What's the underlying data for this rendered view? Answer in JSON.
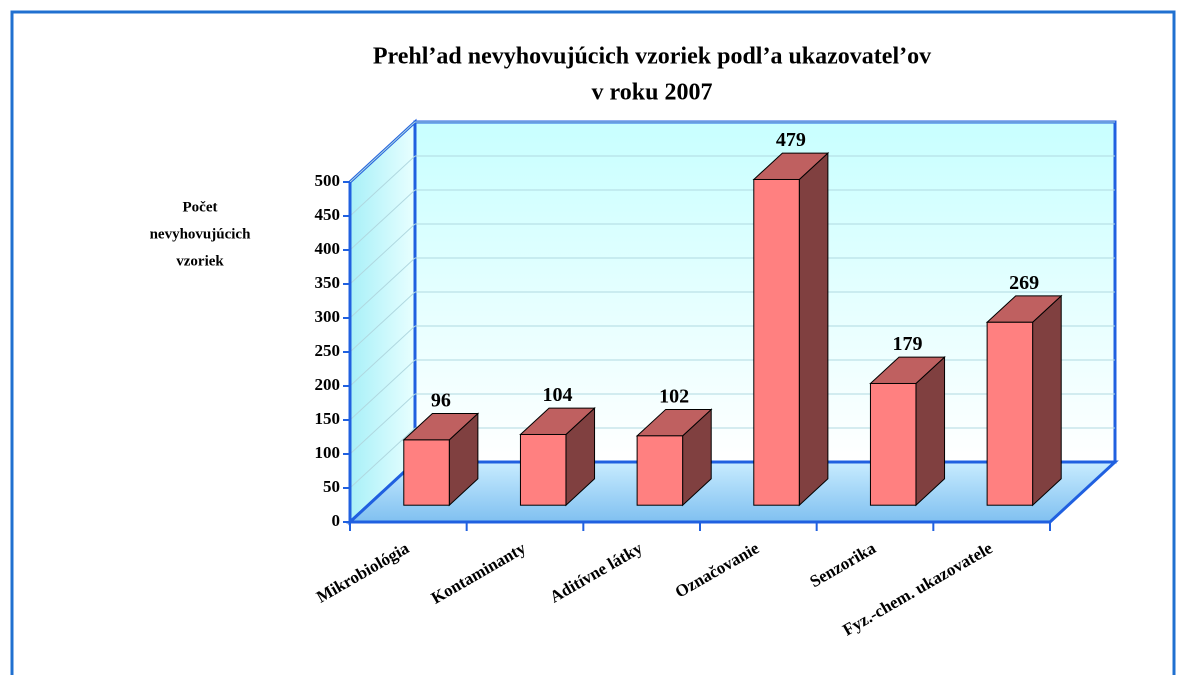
{
  "chart_data": {
    "type": "bar3d",
    "title": [
      "Prehl’ad nevyhovujúcich vzoriek podl’a ukazovatel’ov",
      "v roku 2007"
    ],
    "y_label": [
      "Počet",
      "nevyhovujúcich",
      "vzoriek"
    ],
    "categories": [
      "Mikrobiológia",
      "Kontaminanty",
      "Aditívne látky",
      "Označovanie",
      "Senzorika",
      "Fyz.-chem. ukazovatele"
    ],
    "values": [
      96,
      104,
      102,
      479,
      179,
      269
    ],
    "color": "#ff8080",
    "ylim": [
      0,
      500
    ],
    "yticks": [
      0,
      50,
      100,
      150,
      200,
      250,
      300,
      350,
      400,
      450,
      500
    ],
    "grid": true
  }
}
